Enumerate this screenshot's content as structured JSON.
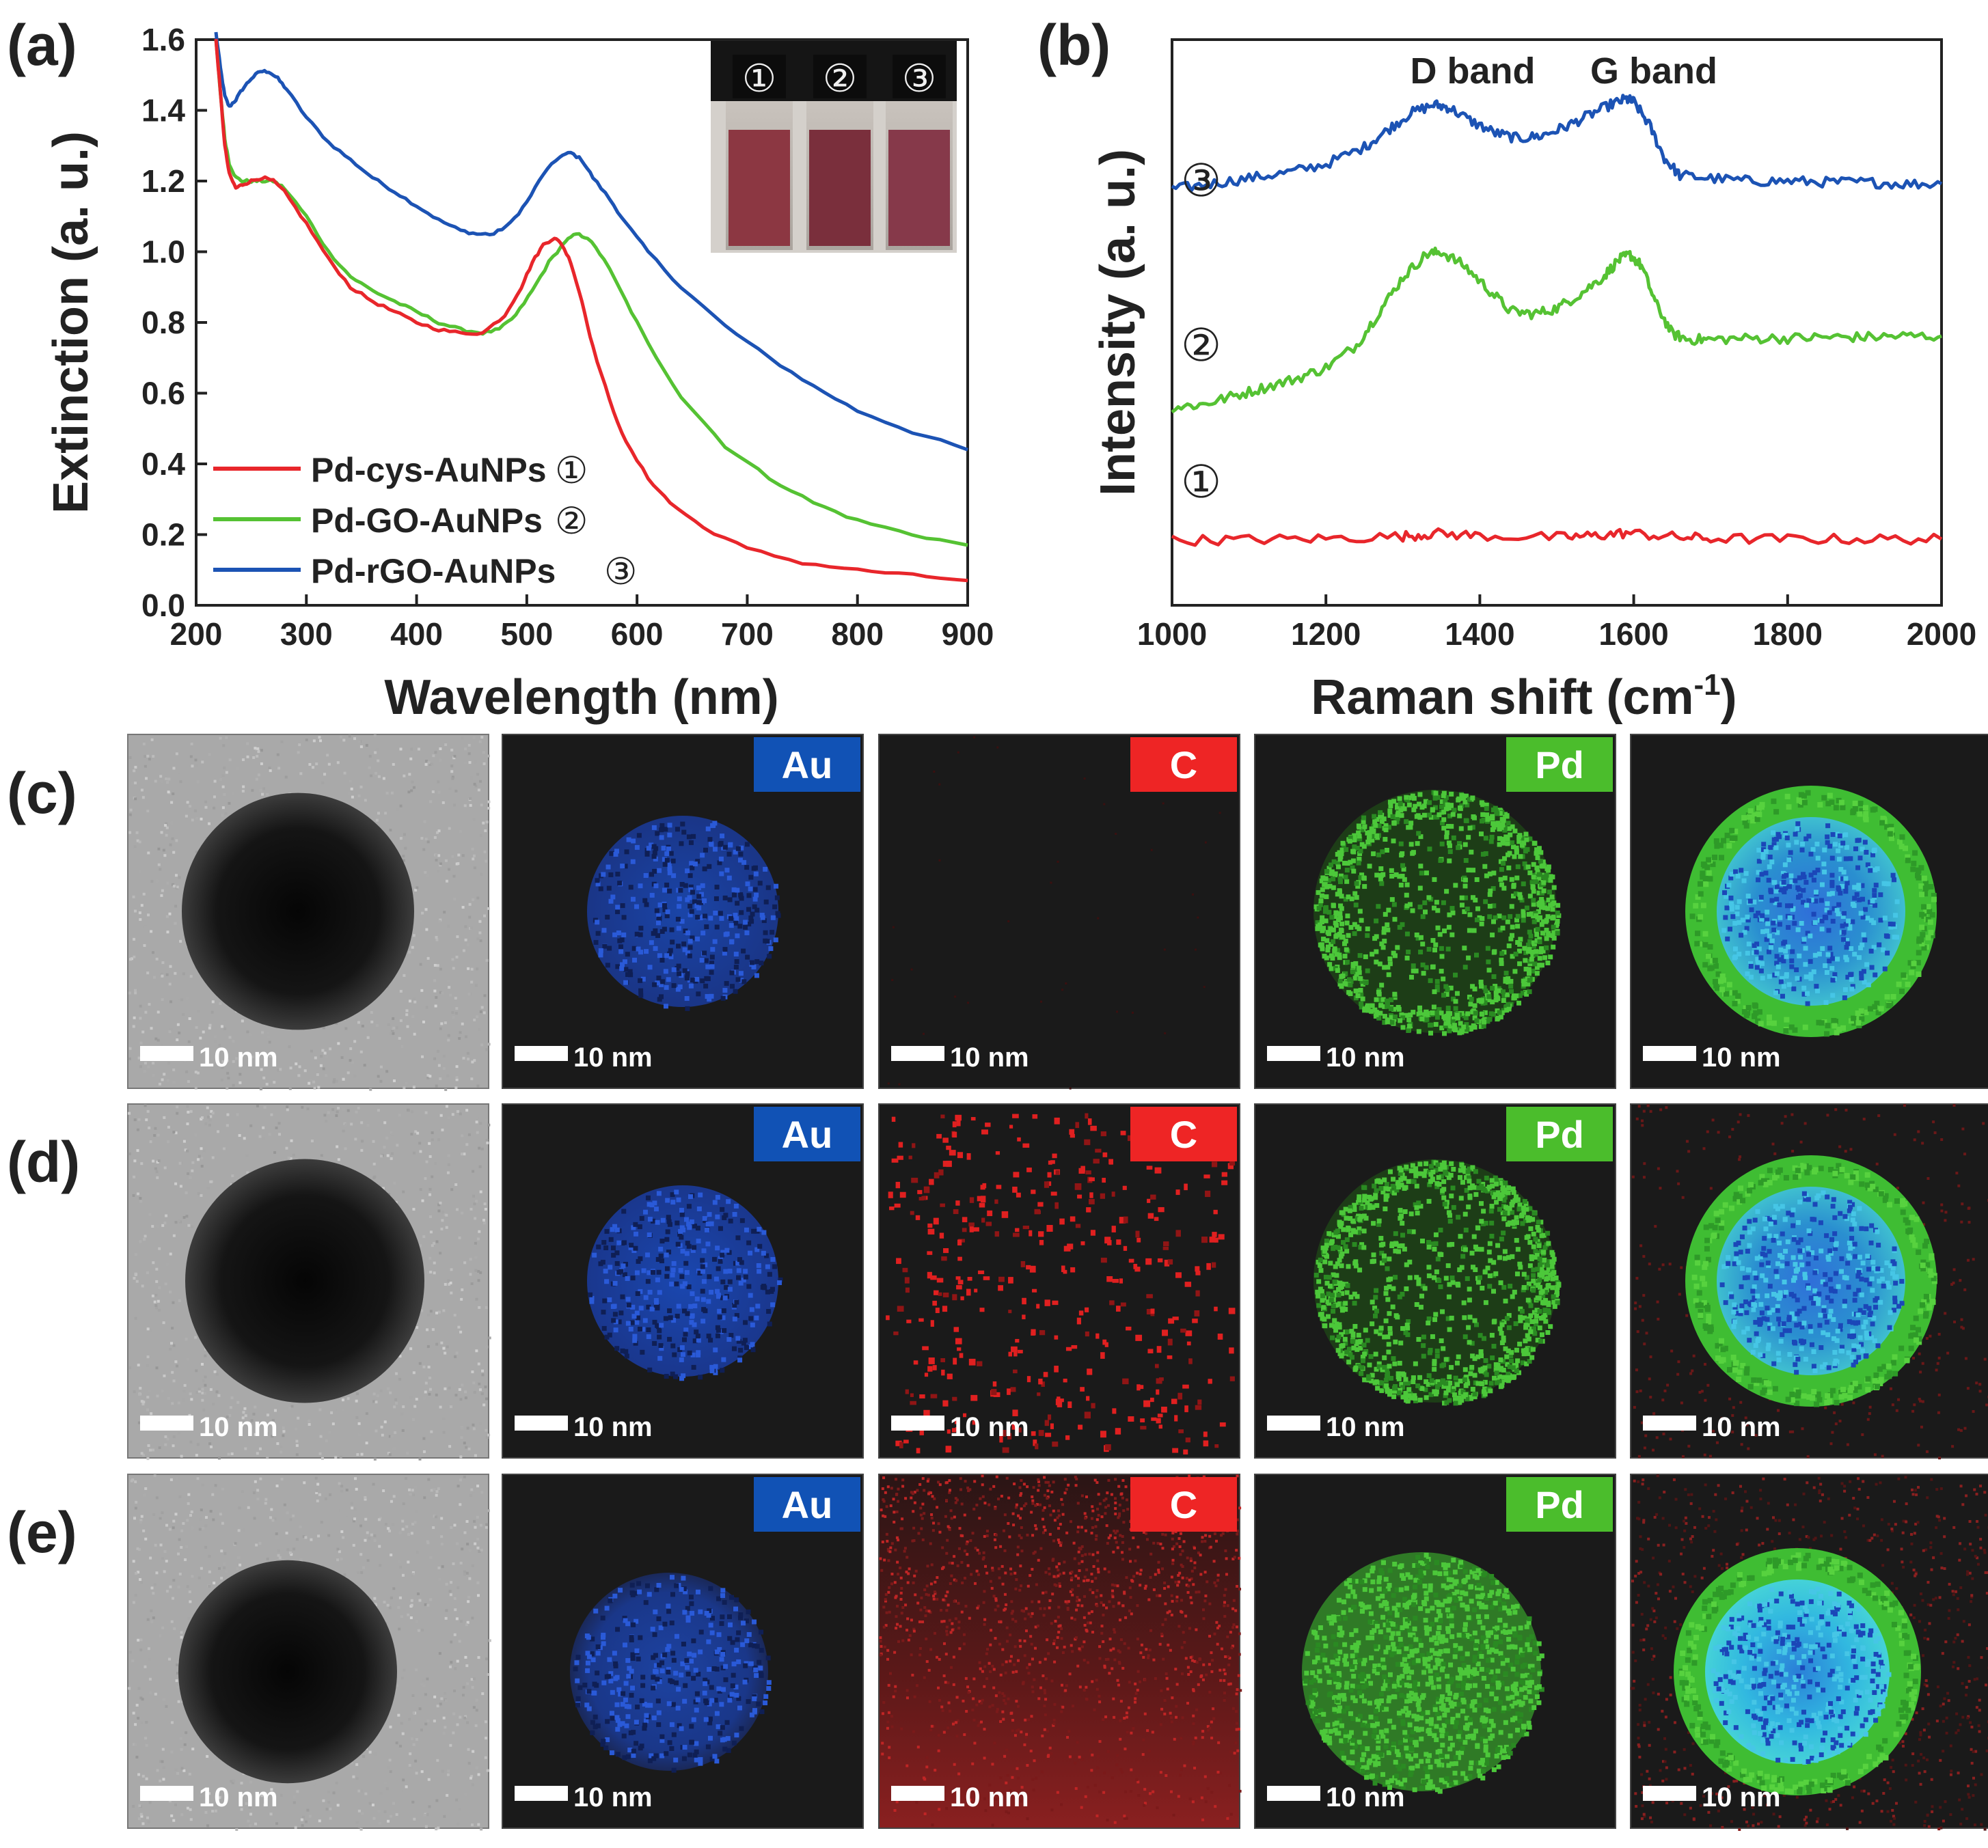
{
  "figure": {
    "panel_labels": [
      "(a)",
      "(b)",
      "(c)",
      "(d)",
      "(e)"
    ],
    "colors": {
      "red": "#e8262b",
      "green": "#55c233",
      "blue": "#1c53b4",
      "axis": "#222222",
      "tem_bg": "#a9a9a9",
      "map_bg": "#1a1a1a",
      "au_tag": "#1152b5",
      "c_tag": "#ee2525",
      "pd_tag": "#4bbd2c"
    }
  },
  "chart_data": [
    {
      "id": "a",
      "type": "line",
      "xlabel": "Wavelength (nm)",
      "ylabel": "Extinction (a. u.)",
      "xlim": [
        200,
        900
      ],
      "ylim": [
        0.0,
        1.6
      ],
      "xticks": [
        200,
        300,
        400,
        500,
        600,
        700,
        800,
        900
      ],
      "yticks": [
        0.0,
        0.2,
        0.4,
        0.6,
        0.8,
        1.0,
        1.2,
        1.4,
        1.6
      ],
      "xtick_labels": [
        "200",
        "300",
        "400",
        "500",
        "600",
        "700",
        "800",
        "900"
      ],
      "ytick_labels": [
        "0.0",
        "0.2",
        "0.4",
        "0.6",
        "0.8",
        "1.0",
        "1.2",
        "1.4",
        "1.6"
      ],
      "legend_position": "lower-left",
      "inset": {
        "vial_labels": [
          "①",
          "②",
          "③"
        ],
        "vial_colors": [
          "#8c3742",
          "#7a2f3c",
          "#86394a"
        ]
      },
      "series": [
        {
          "name": "Pd-cys-AuNPs",
          "marker": "①",
          "color": "#e8262b",
          "x": [
            218,
            222,
            226,
            230,
            236,
            242,
            250,
            260,
            270,
            280,
            300,
            320,
            340,
            360,
            380,
            400,
            420,
            440,
            460,
            480,
            495,
            505,
            515,
            525,
            532,
            540,
            550,
            560,
            575,
            590,
            610,
            630,
            660,
            700,
            750,
            800,
            850,
            900
          ],
          "y": [
            1.6,
            1.45,
            1.3,
            1.22,
            1.18,
            1.19,
            1.2,
            1.21,
            1.2,
            1.17,
            1.08,
            0.98,
            0.9,
            0.86,
            0.83,
            0.8,
            0.78,
            0.77,
            0.77,
            0.82,
            0.9,
            0.97,
            1.02,
            1.04,
            1.02,
            0.97,
            0.86,
            0.73,
            0.58,
            0.46,
            0.36,
            0.29,
            0.22,
            0.16,
            0.12,
            0.1,
            0.085,
            0.07
          ]
        },
        {
          "name": "Pd-GO-AuNPs",
          "marker": "②",
          "color": "#55c233",
          "x": [
            218,
            222,
            226,
            230,
            236,
            242,
            250,
            260,
            270,
            280,
            300,
            320,
            340,
            360,
            380,
            400,
            420,
            440,
            460,
            475,
            490,
            505,
            520,
            535,
            545,
            555,
            570,
            590,
            610,
            640,
            680,
            720,
            760,
            800,
            850,
            900
          ],
          "y": [
            1.6,
            1.45,
            1.32,
            1.25,
            1.21,
            1.2,
            1.2,
            1.2,
            1.2,
            1.18,
            1.1,
            1.0,
            0.93,
            0.89,
            0.86,
            0.83,
            0.8,
            0.78,
            0.77,
            0.78,
            0.82,
            0.89,
            0.97,
            1.03,
            1.05,
            1.04,
            0.98,
            0.86,
            0.74,
            0.59,
            0.45,
            0.36,
            0.29,
            0.24,
            0.2,
            0.17
          ]
        },
        {
          "name": "Pd-rGO-AuNPs",
          "marker": "③",
          "color": "#1c53b4",
          "x": [
            218,
            222,
            226,
            230,
            236,
            242,
            250,
            258,
            266,
            274,
            282,
            300,
            320,
            340,
            360,
            380,
            400,
            420,
            440,
            455,
            470,
            485,
            500,
            515,
            530,
            540,
            550,
            560,
            575,
            590,
            610,
            640,
            680,
            720,
            760,
            800,
            850,
            900
          ],
          "y": [
            1.62,
            1.52,
            1.44,
            1.41,
            1.43,
            1.46,
            1.49,
            1.51,
            1.51,
            1.49,
            1.46,
            1.38,
            1.31,
            1.26,
            1.21,
            1.17,
            1.13,
            1.09,
            1.06,
            1.05,
            1.05,
            1.08,
            1.14,
            1.22,
            1.27,
            1.28,
            1.26,
            1.21,
            1.15,
            1.08,
            1.0,
            0.9,
            0.79,
            0.7,
            0.62,
            0.55,
            0.49,
            0.44
          ]
        }
      ]
    },
    {
      "id": "b",
      "type": "line",
      "xlabel": "Raman shift (cm",
      "xlabel_sup": "-1",
      "xlabel_close": ")",
      "ylabel": "Intensity (a. u.)",
      "xlim": [
        1000,
        2000
      ],
      "ylim": [
        0.0,
        1.0
      ],
      "xticks": [
        1000,
        1200,
        1400,
        1600,
        1800,
        2000
      ],
      "xtick_labels": [
        "1000",
        "1200",
        "1400",
        "1600",
        "1800",
        "2000"
      ],
      "annotations": [
        "D band",
        "G band"
      ],
      "series": [
        {
          "name": "③",
          "color": "#1c53b4",
          "x": [
            1000,
            1050,
            1100,
            1150,
            1200,
            1250,
            1280,
            1310,
            1340,
            1360,
            1390,
            1420,
            1450,
            1480,
            1510,
            1540,
            1570,
            1590,
            1600,
            1620,
            1640,
            1660,
            1700,
            1750,
            1800,
            1850,
            1900,
            1950,
            2000
          ],
          "y": [
            0.735,
            0.745,
            0.755,
            0.765,
            0.78,
            0.81,
            0.84,
            0.87,
            0.885,
            0.88,
            0.855,
            0.835,
            0.825,
            0.83,
            0.845,
            0.865,
            0.885,
            0.895,
            0.89,
            0.85,
            0.79,
            0.76,
            0.755,
            0.75,
            0.75,
            0.748,
            0.748,
            0.745,
            0.745
          ]
        },
        {
          "name": "②",
          "color": "#55c233",
          "x": [
            1000,
            1040,
            1080,
            1120,
            1160,
            1200,
            1240,
            1270,
            1300,
            1330,
            1350,
            1380,
            1410,
            1440,
            1470,
            1500,
            1530,
            1560,
            1580,
            1595,
            1610,
            1630,
            1650,
            1670,
            1700,
            1750,
            1800,
            1850,
            1900,
            1950,
            2000
          ],
          "y": [
            0.35,
            0.355,
            0.37,
            0.385,
            0.4,
            0.42,
            0.46,
            0.52,
            0.58,
            0.62,
            0.625,
            0.6,
            0.56,
            0.52,
            0.515,
            0.525,
            0.55,
            0.58,
            0.61,
            0.62,
            0.6,
            0.53,
            0.48,
            0.47,
            0.47,
            0.472,
            0.472,
            0.474,
            0.474,
            0.476,
            0.476
          ]
        },
        {
          "name": "①",
          "color": "#e8262b",
          "x": [
            1000,
            1100,
            1200,
            1300,
            1340,
            1400,
            1500,
            1550,
            1590,
            1650,
            1700,
            1800,
            1900,
            2000
          ],
          "y": [
            0.115,
            0.116,
            0.118,
            0.122,
            0.127,
            0.123,
            0.12,
            0.123,
            0.128,
            0.121,
            0.118,
            0.117,
            0.117,
            0.117
          ]
        }
      ]
    }
  ],
  "map_rows": [
    {
      "label": "(c)",
      "au_tag": "Au",
      "c_tag": "C",
      "pd_tag": "Pd",
      "scale_bars": [
        "10 nm",
        "10 nm",
        "10 nm",
        "10 nm",
        "10 nm"
      ]
    },
    {
      "label": "(d)",
      "au_tag": "Au",
      "c_tag": "C",
      "pd_tag": "Pd",
      "scale_bars": [
        "10 nm",
        "10 nm",
        "10 nm",
        "10 nm",
        "10 nm"
      ]
    },
    {
      "label": "(e)",
      "au_tag": "Au",
      "c_tag": "C",
      "pd_tag": "Pd",
      "scale_bars": [
        "10 nm",
        "10 nm",
        "10 nm",
        "10 nm",
        "10 nm"
      ]
    }
  ]
}
